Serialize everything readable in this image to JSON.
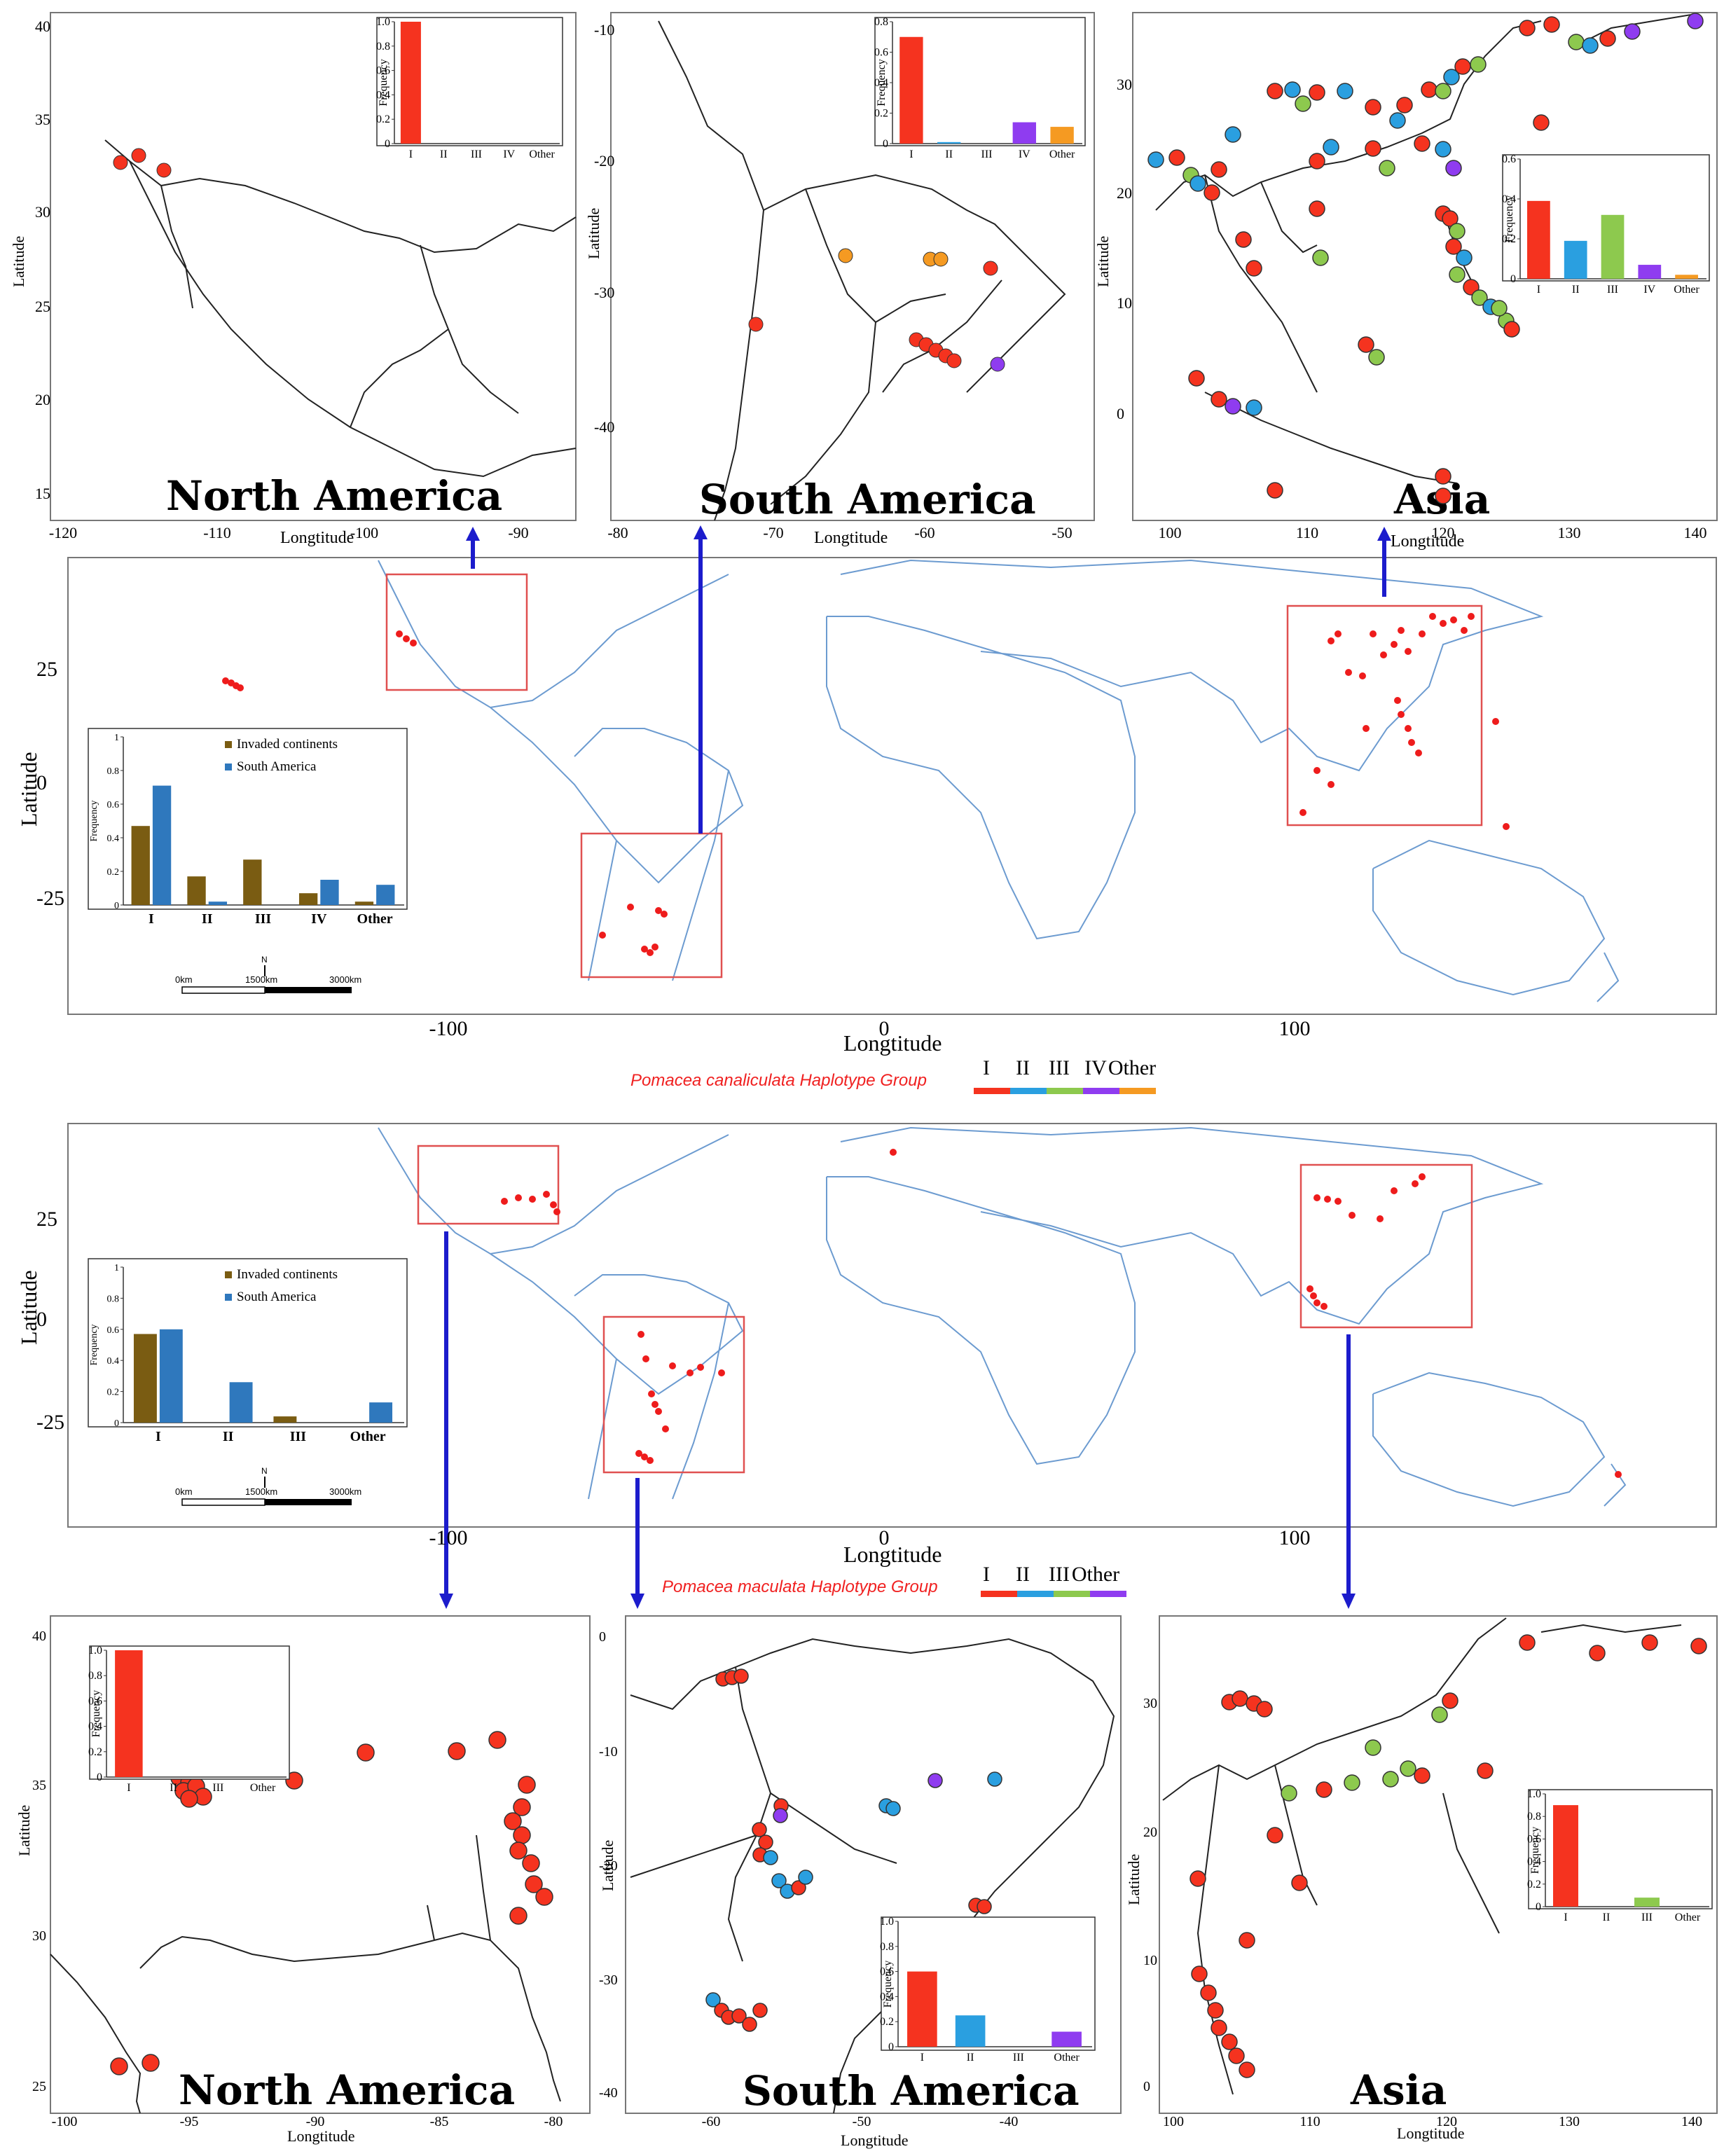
{
  "figure": {
    "colors": {
      "I": "#f5331f",
      "II": "#2a9fe0",
      "III": "#8dc94e",
      "IV": "#8f3cf0",
      "Other": "#f59a22",
      "invaded": "#7a5c12",
      "south_america": "#2f78bd",
      "coast": "#6c9bd0",
      "frame_red": "#e05050",
      "arrow": "#1c1ccc"
    },
    "canaliculata": {
      "legend": {
        "title": "Pomacea canaliculata Haplotype Group",
        "labels": [
          "I",
          "II",
          "III",
          "IV",
          "Other"
        ]
      },
      "world": {
        "xlabel": "Longtitude",
        "ylabel": "Latitude",
        "xticks": [
          "-100",
          "0",
          "100"
        ],
        "yticks": [
          "25",
          "0",
          "-25"
        ],
        "inset": {
          "legend": [
            "Invaded continents",
            "South America"
          ],
          "ylabel": "Frequency",
          "yticks": [
            "1",
            "0.8",
            "0.6",
            "0.4",
            "0.2",
            "0"
          ],
          "categories": [
            "I",
            "II",
            "III",
            "IV",
            "Other"
          ]
        },
        "scale": {
          "labels": [
            "0km",
            "1500km",
            "3000km"
          ],
          "north": "N"
        }
      },
      "panels": {
        "north_america": {
          "title": "North America",
          "xlabel": "Longtitude",
          "ylabel": "Latitude",
          "xticks": [
            "-120",
            "-110",
            "-100",
            "-90"
          ],
          "yticks": [
            "40",
            "35",
            "30",
            "25",
            "20",
            "15"
          ],
          "inset": {
            "ylabel": "Frequency",
            "yticks": [
              "1.0",
              "0.8",
              "0.6",
              "0.4",
              "0.2",
              "0"
            ],
            "categories": [
              "I",
              "II",
              "III",
              "IV",
              "Other"
            ]
          }
        },
        "south_america": {
          "title": "South America",
          "xlabel": "Longtitude",
          "ylabel": "Latitude",
          "xticks": [
            "-80",
            "-70",
            "-60",
            "-50"
          ],
          "yticks": [
            "-10",
            "-20",
            "-30",
            "-40"
          ],
          "inset": {
            "ylabel": "Frequency",
            "yticks": [
              "0.8",
              "0.6",
              "0.4",
              "0.2",
              "0"
            ],
            "categories": [
              "I",
              "II",
              "III",
              "IV",
              "Other"
            ]
          }
        },
        "asia": {
          "title": "Asia",
          "xlabel": "Longtitude",
          "ylabel": "Latitude",
          "xticks": [
            "100",
            "110",
            "120",
            "130",
            "140"
          ],
          "yticks": [
            "30",
            "20",
            "10",
            "0"
          ],
          "inset": {
            "ylabel": "Frequency",
            "yticks": [
              "0.6",
              "0.4",
              "0.2",
              "0"
            ],
            "categories": [
              "I",
              "II",
              "III",
              "IV",
              "Other"
            ]
          }
        }
      }
    },
    "maculata": {
      "legend": {
        "title": "Pomacea maculata Haplotype Group",
        "labels": [
          "I",
          "II",
          "III",
          "Other"
        ]
      },
      "world": {
        "xlabel": "Longtitude",
        "ylabel": "Latitude",
        "xticks": [
          "-100",
          "0",
          "100"
        ],
        "yticks": [
          "25",
          "0",
          "-25"
        ],
        "inset": {
          "legend": [
            "Invaded continents",
            "South America"
          ],
          "ylabel": "Frequency",
          "yticks": [
            "1",
            "0.8",
            "0.6",
            "0.4",
            "0.2",
            "0"
          ],
          "categories": [
            "I",
            "II",
            "III",
            "Other"
          ]
        },
        "scale": {
          "labels": [
            "0km",
            "1500km",
            "3000km"
          ],
          "north": "N"
        }
      },
      "panels": {
        "north_america": {
          "title": "North America",
          "xlabel": "Longtitude",
          "ylabel": "Latitude",
          "xticks": [
            "-100",
            "-95",
            "-90",
            "-85",
            "-80"
          ],
          "yticks": [
            "40",
            "35",
            "30",
            "25"
          ],
          "inset": {
            "ylabel": "Frequency",
            "yticks": [
              "1.0",
              "0.8",
              "0.6",
              "0.4",
              "0.2",
              "0"
            ],
            "categories": [
              "I",
              "II",
              "III",
              "Other"
            ]
          }
        },
        "south_america": {
          "title": "South America",
          "xlabel": "Longtitude",
          "ylabel": "Latitude",
          "xticks": [
            "-60",
            "-50",
            "-40"
          ],
          "yticks": [
            "0",
            "-10",
            "-20",
            "-30",
            "-40"
          ],
          "inset": {
            "ylabel": "Frequency",
            "yticks": [
              "1.0",
              "0.8",
              "0.6",
              "0.4",
              "0.2",
              "0"
            ],
            "categories": [
              "I",
              "II",
              "III",
              "Other"
            ]
          }
        },
        "asia": {
          "title": "Asia",
          "xlabel": "Longtitude",
          "ylabel": "Latitude",
          "xticks": [
            "100",
            "110",
            "120",
            "130",
            "140"
          ],
          "yticks": [
            "30",
            "20",
            "10",
            "0"
          ],
          "inset": {
            "ylabel": "Frequency",
            "yticks": [
              "1.0",
              "0.8",
              "0.6",
              "0.4",
              "0.2",
              "0"
            ],
            "categories": [
              "I",
              "II",
              "III",
              "Other"
            ]
          }
        }
      }
    }
  },
  "chart_data": [
    {
      "type": "bar",
      "id": "can-na",
      "categories": [
        "I",
        "II",
        "III",
        "IV",
        "Other"
      ],
      "values": [
        1.0,
        0,
        0,
        0,
        0
      ],
      "ylim": [
        0,
        1.0
      ],
      "ylabel": "Frequency"
    },
    {
      "type": "bar",
      "id": "can-sa",
      "categories": [
        "I",
        "II",
        "III",
        "IV",
        "Other"
      ],
      "values": [
        0.7,
        0.01,
        0,
        0.14,
        0.11
      ],
      "ylim": [
        0,
        0.8
      ],
      "ylabel": "Frequency"
    },
    {
      "type": "bar",
      "id": "can-asia",
      "categories": [
        "I",
        "II",
        "III",
        "IV",
        "Other"
      ],
      "values": [
        0.39,
        0.19,
        0.32,
        0.07,
        0.02
      ],
      "ylim": [
        0,
        0.6
      ],
      "ylabel": "Frequency"
    },
    {
      "type": "bar",
      "id": "can-world",
      "categories": [
        "I",
        "II",
        "III",
        "IV",
        "Other"
      ],
      "ylabel": "Frequency",
      "ylim": [
        0,
        1
      ],
      "series": [
        {
          "name": "Invaded continents",
          "values": [
            0.47,
            0.17,
            0.27,
            0.07,
            0.02
          ]
        },
        {
          "name": "South America",
          "values": [
            0.71,
            0.02,
            0,
            0.15,
            0.12
          ]
        }
      ]
    },
    {
      "type": "bar",
      "id": "mac-world",
      "categories": [
        "I",
        "II",
        "III",
        "Other"
      ],
      "ylabel": "Frequency",
      "ylim": [
        0,
        1
      ],
      "series": [
        {
          "name": "Invaded continents",
          "values": [
            0.57,
            0,
            0.04,
            0
          ]
        },
        {
          "name": "South America",
          "values": [
            0.6,
            0.26,
            0,
            0.13
          ]
        }
      ]
    },
    {
      "type": "bar",
      "id": "mac-na",
      "categories": [
        "I",
        "II",
        "III",
        "Other"
      ],
      "values": [
        1.0,
        0,
        0,
        0
      ],
      "ylim": [
        0,
        1.0
      ],
      "ylabel": "Frequency"
    },
    {
      "type": "bar",
      "id": "mac-sa",
      "categories": [
        "I",
        "II",
        "III",
        "Other"
      ],
      "values": [
        0.6,
        0.25,
        0,
        0.12
      ],
      "ylim": [
        0,
        1.0
      ],
      "ylabel": "Frequency"
    },
    {
      "type": "bar",
      "id": "mac-asia",
      "categories": [
        "I",
        "II",
        "III",
        "Other"
      ],
      "values": [
        0.9,
        0,
        0.08,
        0
      ],
      "ylim": [
        0,
        1.0
      ],
      "ylabel": "Frequency"
    }
  ]
}
